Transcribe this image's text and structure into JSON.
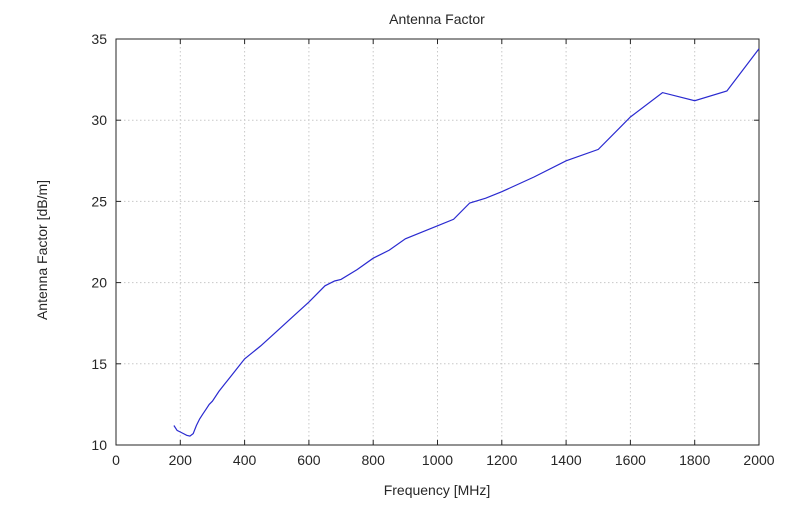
{
  "chart_data": {
    "type": "line",
    "title": "Antenna Factor",
    "xlabel": "Frequency [MHz]",
    "ylabel": "Antenna Factor [dB/m]",
    "xlim": [
      0,
      2000
    ],
    "ylim": [
      10,
      35
    ],
    "xticks": [
      0,
      200,
      400,
      600,
      800,
      1000,
      1200,
      1400,
      1600,
      1800,
      2000
    ],
    "yticks": [
      10,
      15,
      20,
      25,
      30,
      35
    ],
    "grid": true,
    "line_color": "#2a2ad0",
    "series": [
      {
        "x": [
          180,
          190,
          200,
          210,
          220,
          230,
          240,
          250,
          260,
          270,
          280,
          290,
          300,
          320,
          340,
          360,
          380,
          400,
          450,
          500,
          550,
          600,
          650,
          680,
          700,
          750,
          800,
          850,
          900,
          950,
          1000,
          1050,
          1100,
          1150,
          1200,
          1300,
          1400,
          1500,
          1600,
          1700,
          1800,
          1900,
          2000
        ],
        "y": [
          11.2,
          10.9,
          10.8,
          10.7,
          10.6,
          10.55,
          10.7,
          11.2,
          11.6,
          11.9,
          12.2,
          12.5,
          12.7,
          13.3,
          13.8,
          14.3,
          14.8,
          15.3,
          16.1,
          17.0,
          17.9,
          18.8,
          19.8,
          20.1,
          20.2,
          20.8,
          21.5,
          22.0,
          22.7,
          23.1,
          23.5,
          23.9,
          24.9,
          25.2,
          25.6,
          26.5,
          27.5,
          28.2,
          30.2,
          31.7,
          31.2,
          31.8,
          34.4
        ]
      }
    ]
  }
}
